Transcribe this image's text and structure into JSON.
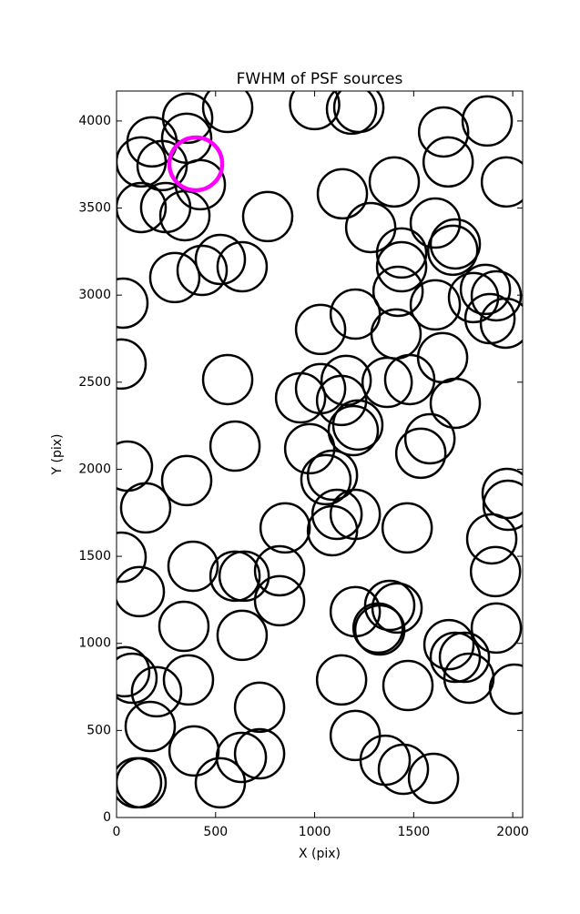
{
  "chart_data": {
    "type": "scatter",
    "title": "FWHM of PSF sources",
    "x_label": "X (pix)",
    "y_label": "Y (pix)",
    "xlim": [
      0,
      2050
    ],
    "ylim": [
      0,
      4172
    ],
    "xticks": [
      0,
      500,
      1000,
      1500,
      2000
    ],
    "yticks": [
      0,
      500,
      1000,
      1500,
      2000,
      2500,
      3000,
      3500,
      4000
    ],
    "marker": "open-circle",
    "series": [
      {
        "color": "#000000",
        "x": [
          359,
          561,
          179,
          354,
          124,
          230,
          423,
          124,
          248,
          345,
          763,
          1000,
          1186,
          1223,
          1651,
          1871,
          1674,
          1968,
          1402,
          1140,
          1283,
          1609,
          1697,
          1710,
          1439,
          1439,
          524,
          432,
          294,
          634,
          1421,
          1205,
          1802,
          1862,
          1917,
          1885,
          1963,
          1609,
          1030,
          1411,
          1646,
          32,
          23,
          561,
          1159,
          1030,
          929,
          1136,
          1366,
          1480,
          1710,
          1218,
          1195,
          1582,
          1536,
          598,
          55,
          975,
          1090,
          1057,
          354,
          147,
          1113,
          1205,
          1090,
          851,
          1467,
          1972,
          1977,
          1894,
          1913,
          1917,
          23,
          115,
          386,
          598,
          644,
          823,
          823,
          340,
          634,
          1205,
          1379,
          1416,
          1320,
          1329,
          1678,
          1710,
          1756,
          1779,
          2009,
          41,
          78,
          202,
          363,
          1136,
          1471,
          722,
          170,
          391,
          630,
          722,
          524,
          1205,
          1356,
          1448,
          1600,
          101,
          124
        ],
        "y": [
          4016,
          4078,
          3880,
          3901,
          3765,
          3744,
          3634,
          3503,
          3503,
          3456,
          3451,
          4094,
          4068,
          4078,
          3937,
          4000,
          3765,
          3650,
          3650,
          3582,
          3388,
          3414,
          3258,
          3294,
          3242,
          3163,
          3205,
          3142,
          3101,
          3163,
          3022,
          2891,
          2986,
          3033,
          2996,
          2865,
          2839,
          2944,
          2803,
          2777,
          2641,
          2954,
          2604,
          2515,
          2510,
          2463,
          2410,
          2395,
          2499,
          2515,
          2379,
          2254,
          2222,
          2175,
          2092,
          2133,
          2018,
          2118,
          1966,
          1940,
          1935,
          1778,
          1741,
          1741,
          1647,
          1663,
          1663,
          1861,
          1793,
          1600,
          1412,
          1088,
          1495,
          1297,
          1443,
          1386,
          1386,
          1417,
          1245,
          1098,
          1046,
          1182,
          1218,
          1203,
          1088,
          1077,
          993,
          920,
          920,
          800,
          737,
          837,
          800,
          722,
          790,
          790,
          758,
          633,
          523,
          382,
          345,
          366,
          199,
          471,
          329,
          277,
          225,
          199,
          199
        ]
      },
      {
        "color": "#ff00ff",
        "x": [
          400
        ],
        "y": [
          3754
        ]
      }
    ]
  }
}
